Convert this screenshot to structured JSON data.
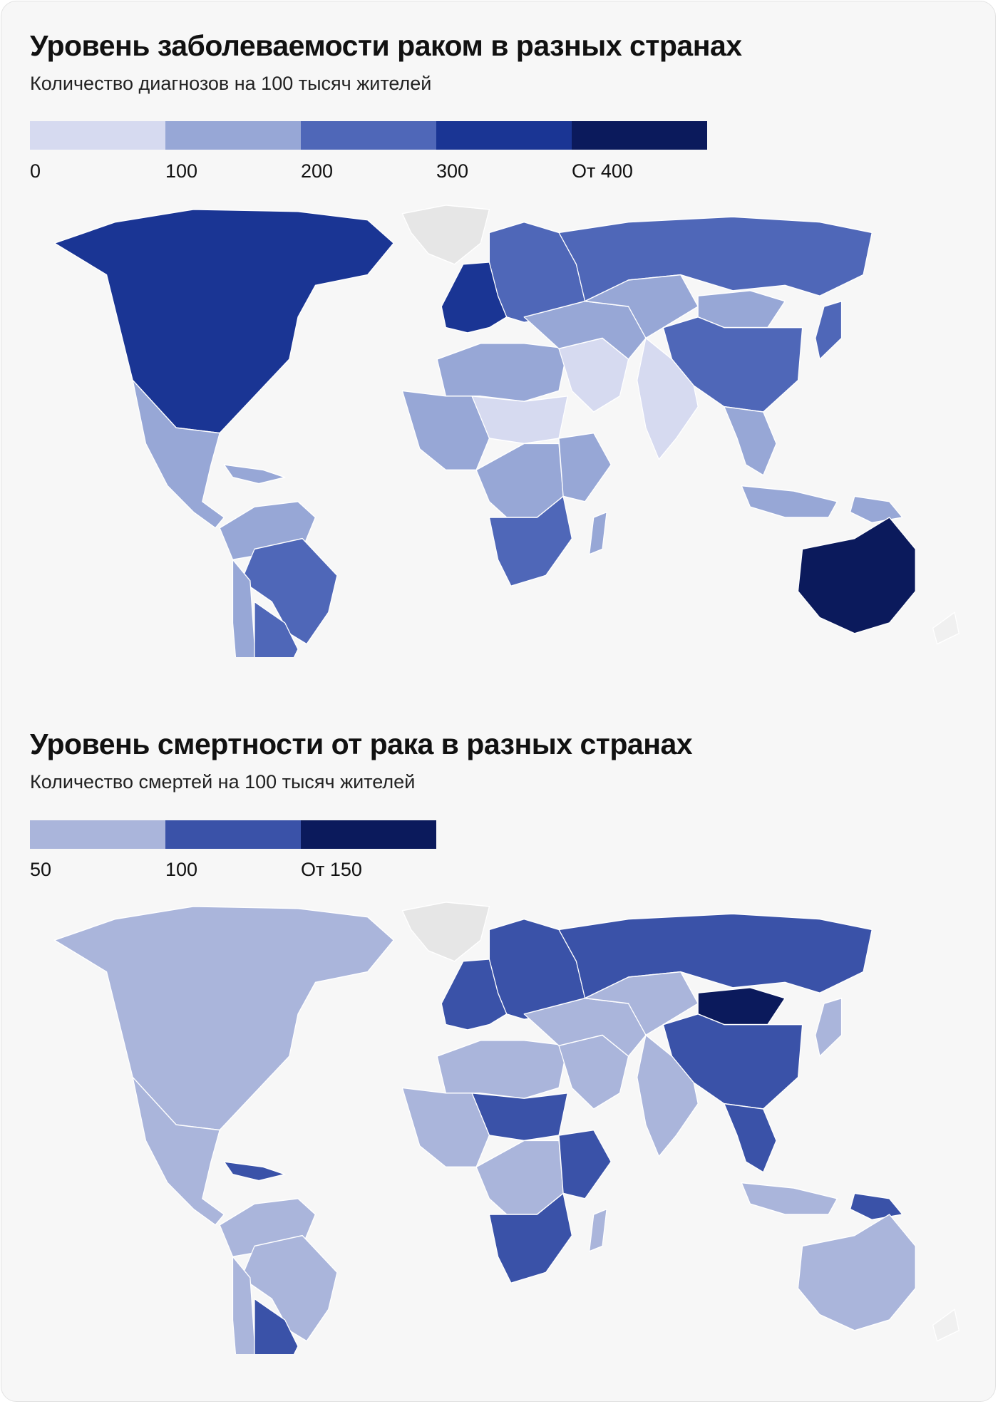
{
  "incidence": {
    "title": "Уровень заболеваемости раком в разных странах",
    "subtitle": "Количество диагнозов на 100 тысяч жителей",
    "legend": {
      "colors": [
        "#d6daf0",
        "#97a7d6",
        "#4f67b8",
        "#1a3594",
        "#0b1a5c"
      ],
      "labels": [
        "0",
        "100",
        "200",
        "300",
        "От 400"
      ]
    },
    "regions": {
      "greenland": "#e6e6e6",
      "north_america": "#1a3594",
      "mexico_central": "#97a7d6",
      "caribbean": "#97a7d6",
      "south_america_north": "#97a7d6",
      "brazil": "#4f67b8",
      "argentina": "#4f67b8",
      "chile": "#97a7d6",
      "western_europe": "#1a3594",
      "eastern_europe": "#4f67b8",
      "russia": "#4f67b8",
      "north_africa": "#97a7d6",
      "west_africa": "#97a7d6",
      "sahel": "#d6daf0",
      "central_africa": "#97a7d6",
      "east_africa": "#97a7d6",
      "southern_africa": "#4f67b8",
      "madagascar": "#97a7d6",
      "middle_east": "#d6daf0",
      "iran_turkey": "#97a7d6",
      "central_asia": "#97a7d6",
      "mongolia": "#97a7d6",
      "india": "#d6daf0",
      "china": "#4f67b8",
      "japan": "#4f67b8",
      "southeast_asia": "#97a7d6",
      "indonesia": "#97a7d6",
      "new_guinea": "#97a7d6",
      "australia": "#0b1a5c",
      "new_zealand": "#f0f0f0"
    }
  },
  "mortality": {
    "title": "Уровень смертности от рака в разных странах",
    "subtitle": "Количество смертей на 100 тысяч жителей",
    "legend": {
      "colors": [
        "#aab5db",
        "#3a52a8",
        "#0b1a5c"
      ],
      "labels": [
        "50",
        "100",
        "От 150"
      ]
    },
    "regions": {
      "greenland": "#e6e6e6",
      "north_america": "#aab5db",
      "mexico_central": "#aab5db",
      "caribbean": "#3a52a8",
      "south_america_north": "#aab5db",
      "brazil": "#aab5db",
      "argentina": "#3a52a8",
      "chile": "#aab5db",
      "western_europe": "#3a52a8",
      "eastern_europe": "#3a52a8",
      "russia": "#3a52a8",
      "north_africa": "#aab5db",
      "west_africa": "#aab5db",
      "sahel": "#3a52a8",
      "central_africa": "#aab5db",
      "east_africa": "#3a52a8",
      "southern_africa": "#3a52a8",
      "madagascar": "#aab5db",
      "middle_east": "#aab5db",
      "iran_turkey": "#aab5db",
      "central_asia": "#aab5db",
      "mongolia": "#0b1a5c",
      "india": "#aab5db",
      "china": "#3a52a8",
      "japan": "#aab5db",
      "southeast_asia": "#3a52a8",
      "indonesia": "#aab5db",
      "new_guinea": "#3a52a8",
      "australia": "#aab5db",
      "new_zealand": "#f0f0f0"
    }
  }
}
